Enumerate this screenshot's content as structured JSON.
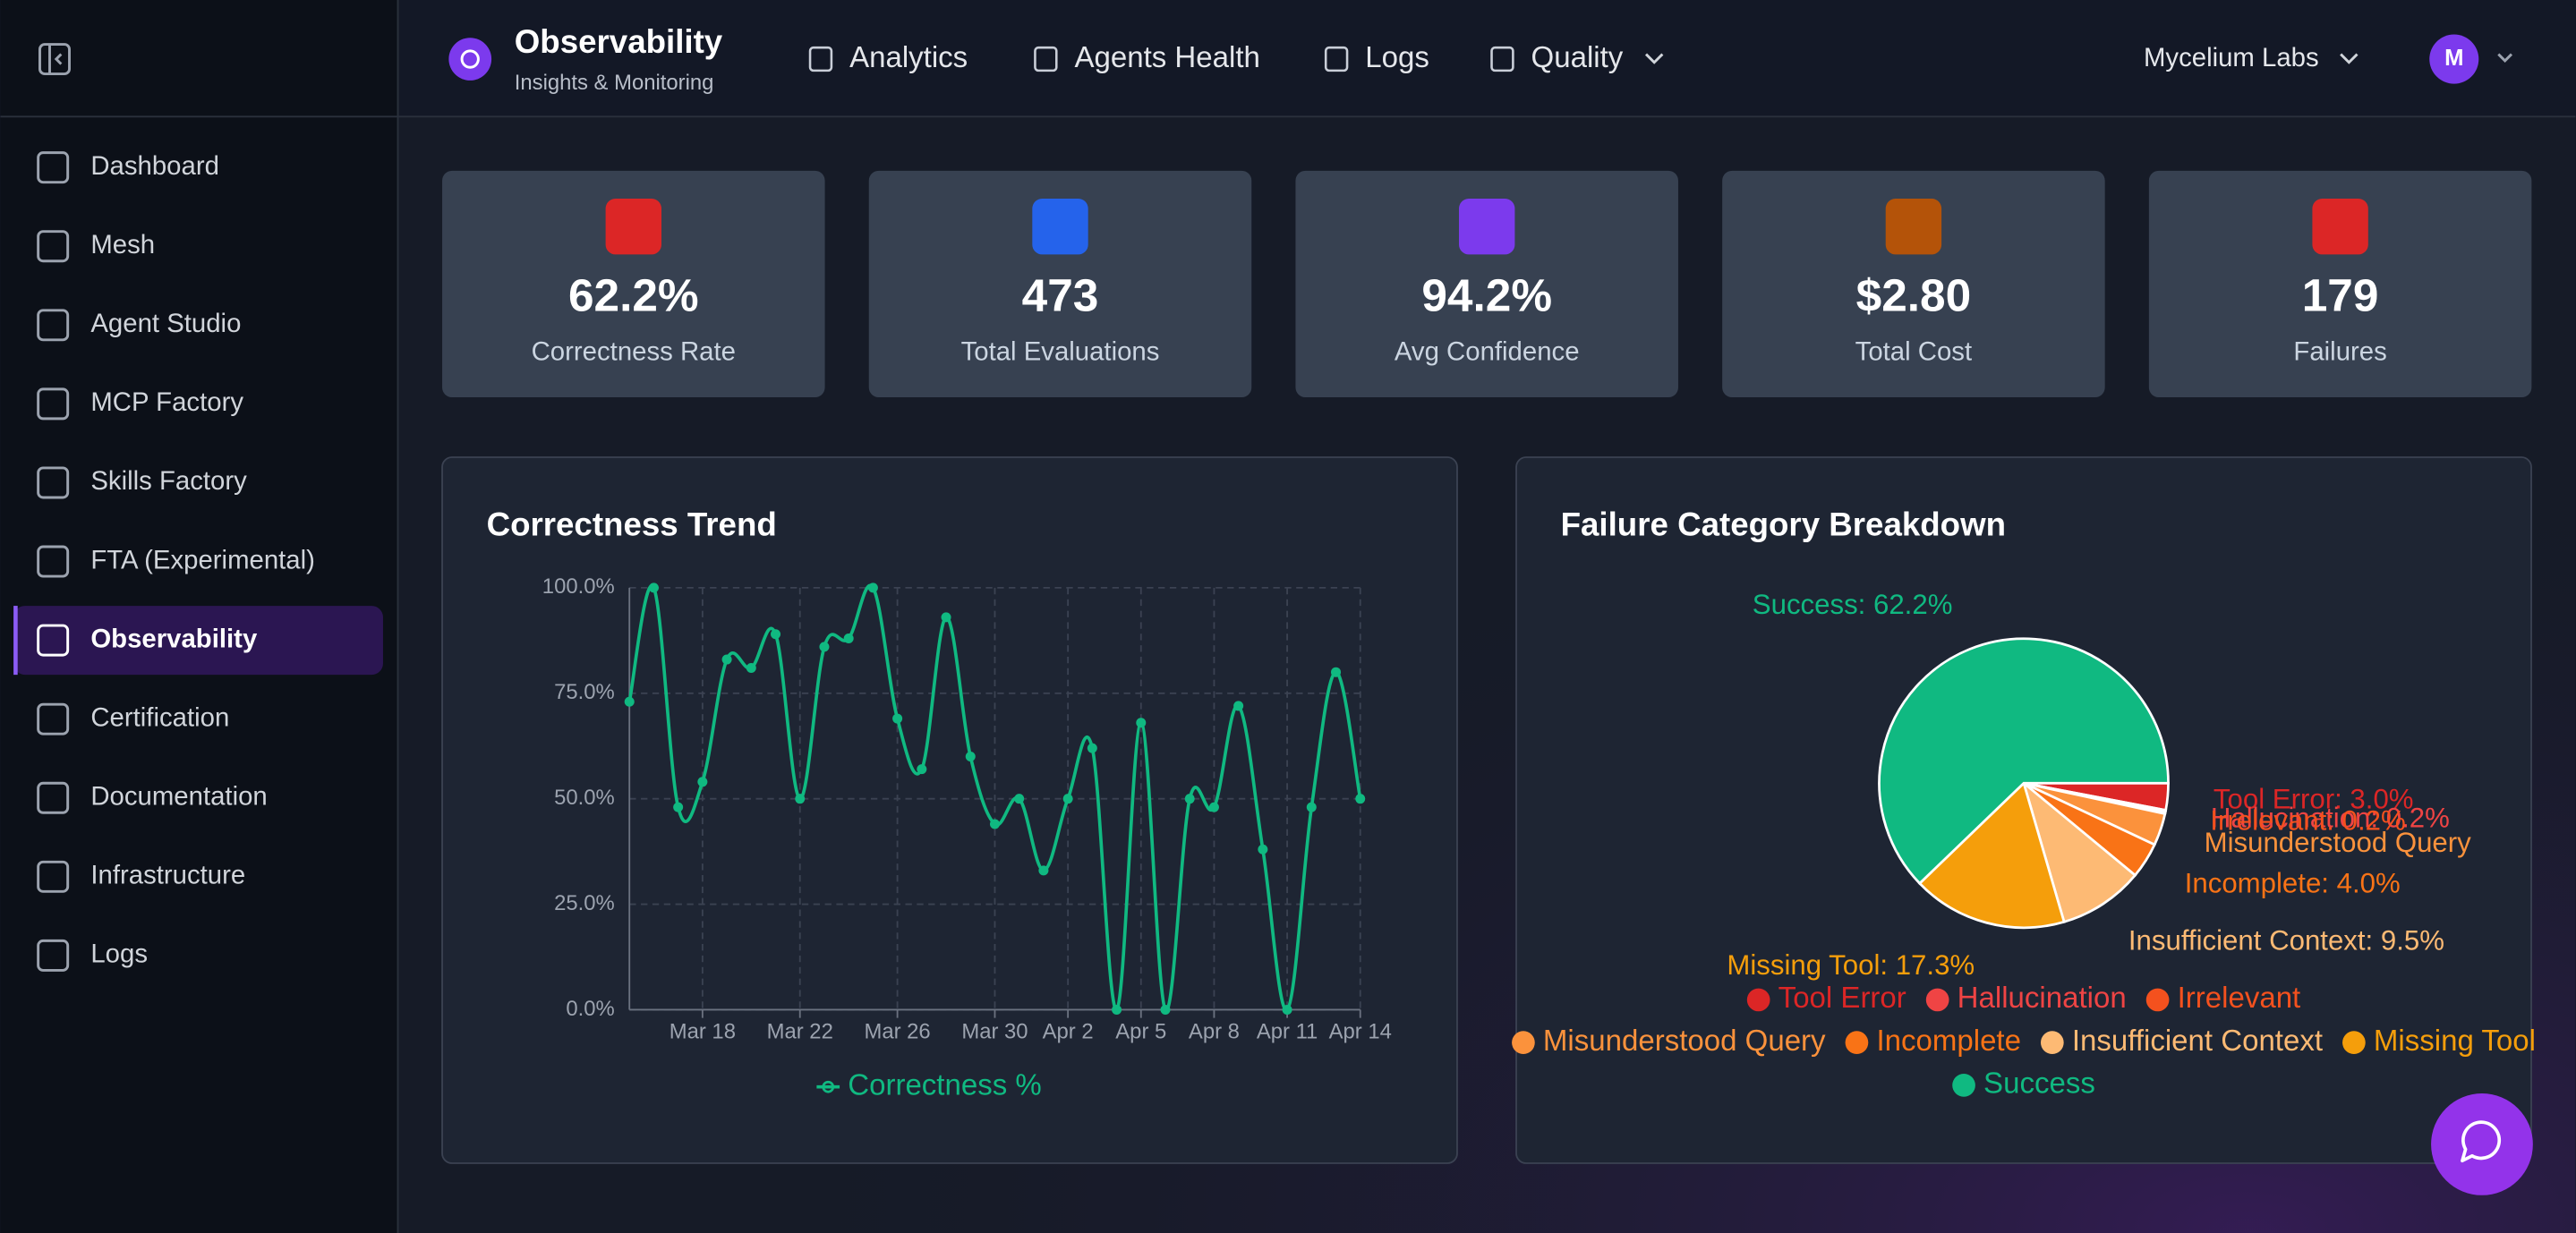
{
  "sidebar": {
    "items": [
      "Dashboard",
      "Mesh",
      "Agent Studio",
      "MCP Factory",
      "Skills Factory",
      "FTA (Experimental)",
      "Observability",
      "Certification",
      "Documentation",
      "Infrastructure",
      "Logs"
    ],
    "active_item": "Observability"
  },
  "header": {
    "title": "Observability",
    "subtitle": "Insights & Monitoring",
    "nav": [
      "Analytics",
      "Agents Health",
      "Logs",
      "Quality"
    ],
    "org": "Mycelium Labs",
    "avatar": "M"
  },
  "stats": [
    {
      "value": "62.2%",
      "label": "Correctness Rate",
      "color": "#dc2626"
    },
    {
      "value": "473",
      "label": "Total Evaluations",
      "color": "#2563eb"
    },
    {
      "value": "94.2%",
      "label": "Avg Confidence",
      "color": "#7c3aed"
    },
    {
      "value": "$2.80",
      "label": "Total Cost",
      "color": "#b45309"
    },
    {
      "value": "179",
      "label": "Failures",
      "color": "#dc2626"
    }
  ],
  "chart_data": [
    {
      "type": "line",
      "title": "Correctness Trend",
      "categories": [
        null,
        null,
        null,
        "Mar 18",
        null,
        null,
        null,
        "Mar 22",
        null,
        null,
        null,
        "Mar 26",
        null,
        null,
        null,
        "Mar 30",
        null,
        null,
        "Apr 2",
        null,
        null,
        "Apr 5",
        null,
        null,
        "Apr 8",
        null,
        null,
        "Apr 11",
        null,
        null,
        "Apr 14"
      ],
      "series": [
        {
          "name": "Correctness %",
          "color": "#10b981",
          "values": [
            73,
            100,
            48,
            54,
            83,
            81,
            89,
            50,
            86,
            88,
            100,
            69,
            57,
            93,
            60,
            44,
            50,
            33,
            50,
            62,
            0,
            68,
            0,
            50,
            48,
            72,
            38,
            0,
            48,
            80,
            50
          ]
        }
      ],
      "ylim": [
        0,
        100
      ],
      "yticks": [
        {
          "value": 0,
          "label": "0.0%"
        },
        {
          "value": 25,
          "label": "25.0%"
        },
        {
          "value": 50,
          "label": "50.0%"
        },
        {
          "value": 75,
          "label": "75.0%"
        },
        {
          "value": 100,
          "label": "100.0%"
        }
      ],
      "grid": true
    },
    {
      "type": "pie",
      "title": "Failure Category Breakdown",
      "categories": [
        "Tool Error",
        "Hallucination",
        "Irrelevant",
        "Misunderstood Query",
        "Incomplete",
        "Insufficient Context",
        "Missing Tool",
        "Success"
      ],
      "values": [
        3.0,
        0.2,
        0.2,
        3.6,
        4.0,
        9.5,
        17.3,
        62.2
      ],
      "value_labels": [
        "Tool Error: 3.0%",
        "Hallucination: 0.2%",
        "Irrelevant: 0.2%",
        "Misunderstood Query",
        "Incomplete: 4.0%",
        "Insufficient Context: 9.5%",
        "Missing Tool: 17.3%",
        "Success: 62.2%"
      ],
      "colors": [
        "#dc2626",
        "#ef4444",
        "#f4511e",
        "#fb923c",
        "#f97316",
        "#fdba74",
        "#f59e0b",
        "#10b981"
      ]
    }
  ]
}
